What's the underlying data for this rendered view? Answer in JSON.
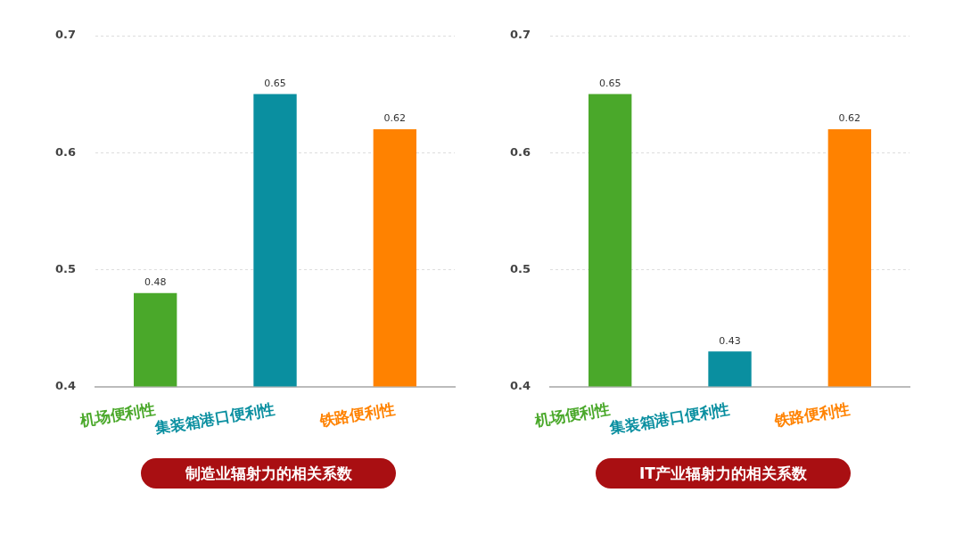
{
  "chart_data": [
    {
      "type": "bar",
      "xlabel": "制造业辐射力的相关系数",
      "categories": [
        "机场便利性",
        "集装箱港口便利性",
        "铁路便利性"
      ],
      "values": [
        0.48,
        0.65,
        0.62
      ],
      "colors": [
        "#4aa82a",
        "#0a8fa0",
        "#ff8200"
      ],
      "ylim": [
        0.4,
        0.7
      ],
      "yticks": [
        0.4,
        0.5,
        0.6,
        0.7
      ],
      "grid": "y",
      "data_labels": true,
      "legend": false
    },
    {
      "type": "bar",
      "xlabel": "IT产业辐射力的相关系数",
      "categories": [
        "机场便利性",
        "集装箱港口便利性",
        "铁路便利性"
      ],
      "values": [
        0.65,
        0.43,
        0.62
      ],
      "colors": [
        "#4aa82a",
        "#0a8fa0",
        "#ff8200"
      ],
      "ylim": [
        0.4,
        0.7
      ],
      "yticks": [
        0.4,
        0.5,
        0.6,
        0.7
      ],
      "grid": "y",
      "data_labels": true,
      "legend": false
    }
  ]
}
